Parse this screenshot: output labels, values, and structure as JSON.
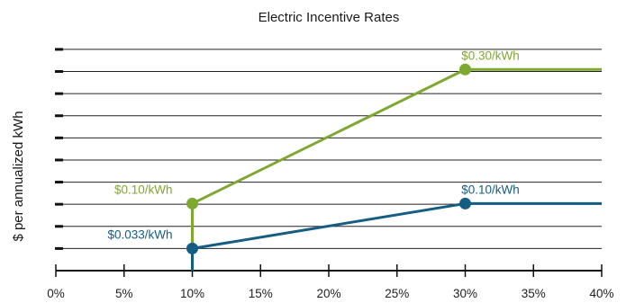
{
  "chart_data": {
    "type": "line",
    "title": "Electric Incentive Rates",
    "xlabel": "",
    "ylabel": "$ per annualized kWh",
    "x_ticks": [
      "0%",
      "5%",
      "10%",
      "15%",
      "20%",
      "25%",
      "30%",
      "35%",
      "40%"
    ],
    "xlim": [
      0,
      40
    ],
    "ylim": [
      0,
      0.35
    ],
    "y_tick_step": 0.033,
    "grid": true,
    "legend": "none",
    "series": [
      {
        "color": "#7ea82f",
        "points": [
          [
            10,
            0
          ],
          [
            10,
            0.1
          ],
          [
            30,
            0.3
          ],
          [
            40,
            0.3
          ]
        ],
        "markers": [
          {
            "x": 10,
            "y": 0.1,
            "label": "$0.10/kWh",
            "label_side": "left"
          },
          {
            "x": 30,
            "y": 0.3,
            "label": "$0.30/kWh",
            "label_side": "right"
          }
        ]
      },
      {
        "color": "#155e83",
        "points": [
          [
            10,
            0
          ],
          [
            10,
            0.033
          ],
          [
            30,
            0.1
          ],
          [
            40,
            0.1
          ]
        ],
        "markers": [
          {
            "x": 10,
            "y": 0.033,
            "label": "$0.033/kWh",
            "label_side": "left"
          },
          {
            "x": 30,
            "y": 0.1,
            "label": "$0.10/kWh",
            "label_side": "right"
          }
        ]
      }
    ]
  }
}
